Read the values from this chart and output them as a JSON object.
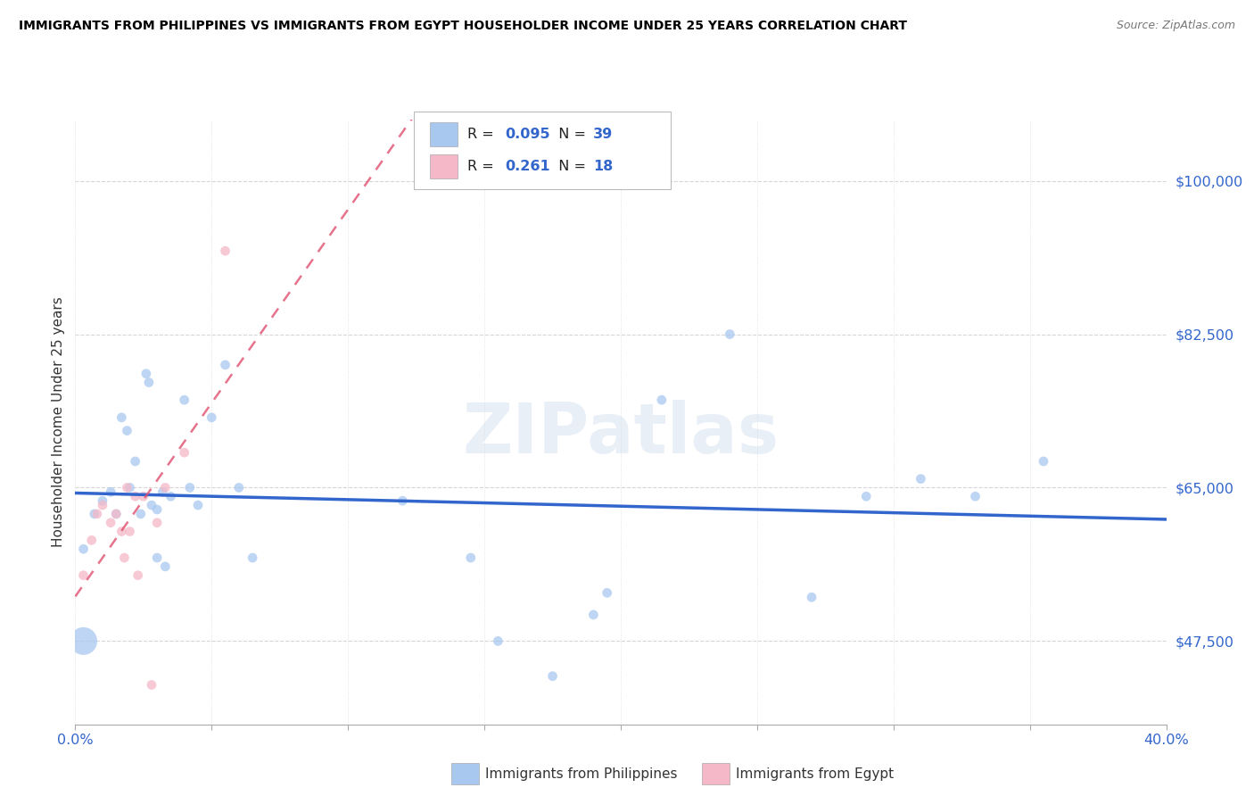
{
  "title": "IMMIGRANTS FROM PHILIPPINES VS IMMIGRANTS FROM EGYPT HOUSEHOLDER INCOME UNDER 25 YEARS CORRELATION CHART",
  "source": "Source: ZipAtlas.com",
  "ylabel": "Householder Income Under 25 years",
  "xlim": [
    0.0,
    0.4
  ],
  "ylim": [
    38000,
    107000
  ],
  "yticks": [
    47500,
    65000,
    82500,
    100000
  ],
  "ytick_labels": [
    "$47,500",
    "$65,000",
    "$82,500",
    "$100,000"
  ],
  "xticks": [
    0.0,
    0.05,
    0.1,
    0.15,
    0.2,
    0.25,
    0.3,
    0.35,
    0.4
  ],
  "xtick_labels": [
    "0.0%",
    "",
    "",
    "",
    "",
    "",
    "",
    "",
    "40.0%"
  ],
  "philippines_color": "#A8C8F0",
  "egypt_color": "#F5B8C8",
  "philippines_line_color": "#3366CC",
  "egypt_line_color": "#E05070",
  "legend_R_philippines": "0.095",
  "legend_N_philippines": "39",
  "legend_R_egypt": "0.261",
  "legend_N_egypt": "18",
  "watermark": "ZIPatlas",
  "philippines_x": [
    0.003,
    0.003,
    0.007,
    0.01,
    0.013,
    0.015,
    0.017,
    0.019,
    0.02,
    0.022,
    0.024,
    0.026,
    0.027,
    0.028,
    0.03,
    0.03,
    0.032,
    0.033,
    0.035,
    0.04,
    0.042,
    0.045,
    0.05,
    0.055,
    0.06,
    0.065,
    0.12,
    0.145,
    0.155,
    0.175,
    0.19,
    0.195,
    0.215,
    0.24,
    0.27,
    0.29,
    0.31,
    0.33,
    0.355
  ],
  "philippines_y": [
    58000,
    47500,
    62000,
    63500,
    64500,
    62000,
    73000,
    71500,
    65000,
    68000,
    62000,
    78000,
    77000,
    63000,
    62500,
    57000,
    64500,
    56000,
    64000,
    75000,
    65000,
    63000,
    73000,
    79000,
    65000,
    57000,
    63500,
    57000,
    47500,
    43500,
    50500,
    53000,
    75000,
    82500,
    52500,
    64000,
    66000,
    64000,
    68000
  ],
  "philippines_size": [
    60,
    500,
    60,
    60,
    60,
    60,
    60,
    60,
    60,
    60,
    60,
    60,
    60,
    60,
    60,
    60,
    60,
    60,
    60,
    60,
    60,
    60,
    60,
    60,
    60,
    60,
    60,
    60,
    60,
    60,
    60,
    60,
    60,
    60,
    60,
    60,
    60,
    60,
    60
  ],
  "egypt_x": [
    0.003,
    0.006,
    0.008,
    0.01,
    0.013,
    0.015,
    0.017,
    0.018,
    0.019,
    0.02,
    0.022,
    0.023,
    0.025,
    0.028,
    0.03,
    0.033,
    0.04,
    0.055
  ],
  "egypt_y": [
    55000,
    59000,
    62000,
    63000,
    61000,
    62000,
    60000,
    57000,
    65000,
    60000,
    64000,
    55000,
    64000,
    42500,
    61000,
    65000,
    69000,
    92000
  ],
  "egypt_size": [
    60,
    60,
    60,
    60,
    60,
    60,
    60,
    60,
    60,
    60,
    60,
    60,
    60,
    60,
    60,
    60,
    60,
    60
  ]
}
